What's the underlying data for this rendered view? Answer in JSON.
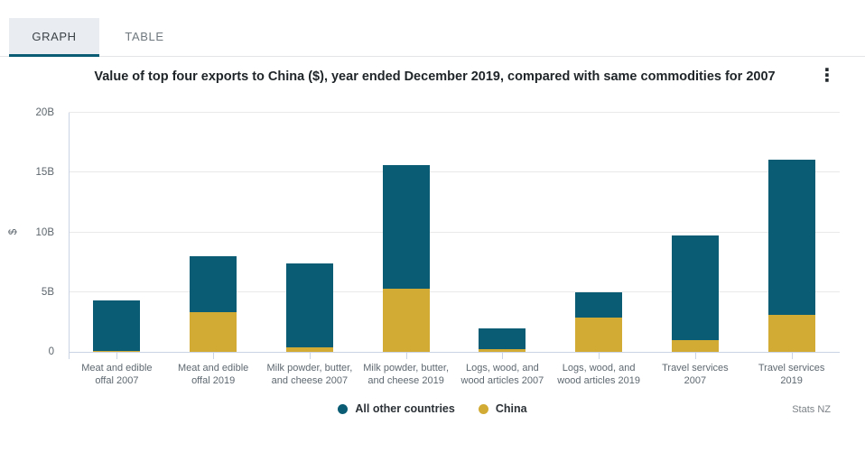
{
  "tabs": [
    {
      "label": "GRAPH",
      "active": true
    },
    {
      "label": "TABLE",
      "active": false
    }
  ],
  "header": {
    "title": "Value of top four exports to China ($), year ended December 2019, compared with same commodities for 2007"
  },
  "footer": {
    "attribution": "Stats NZ"
  },
  "colors": {
    "all_other_countries": "#095c74",
    "china": "#d1ab34",
    "tab_underline": "#095c74",
    "tab_active_bg": "#e9edf1",
    "grid": "#e9e9e9",
    "axis": "#c9d3e3"
  },
  "chart_data": {
    "type": "bar",
    "stacked": true,
    "title": "Value of top four exports to China ($), year ended December 2019, compared with same commodities for 2007",
    "ylabel": "$",
    "xlabel": "",
    "ylim": [
      0,
      20
    ],
    "unit": "billions NZD",
    "yticks": [
      "0",
      "5B",
      "10B",
      "15B",
      "20B"
    ],
    "grid": true,
    "legend_position": "bottom",
    "categories": [
      [
        "Meat and edible",
        "offal 2007"
      ],
      [
        "Meat and edible",
        "offal 2019"
      ],
      [
        "Milk powder, butter,",
        "and cheese 2007"
      ],
      [
        "Milk powder, butter,",
        "and cheese 2019"
      ],
      [
        "Logs, wood, and",
        "wood articles 2007"
      ],
      [
        "Logs, wood, and",
        "wood articles 2019"
      ],
      [
        "Travel services",
        "2007"
      ],
      [
        "Travel services",
        "2019"
      ]
    ],
    "series": [
      {
        "name": "China",
        "color": "#d1ab34",
        "values": [
          0.1,
          3.3,
          0.4,
          5.3,
          0.2,
          2.9,
          1.0,
          3.1
        ]
      },
      {
        "name": "All other countries",
        "color": "#095c74",
        "values": [
          4.2,
          4.7,
          7.0,
          10.3,
          1.8,
          2.1,
          8.7,
          13.0
        ]
      }
    ],
    "totals": [
      4.3,
      8.0,
      7.4,
      15.6,
      2.0,
      5.0,
      9.7,
      16.1
    ],
    "legend": [
      {
        "label": "All other countries",
        "color": "#095c74"
      },
      {
        "label": "China",
        "color": "#d1ab34"
      }
    ]
  }
}
